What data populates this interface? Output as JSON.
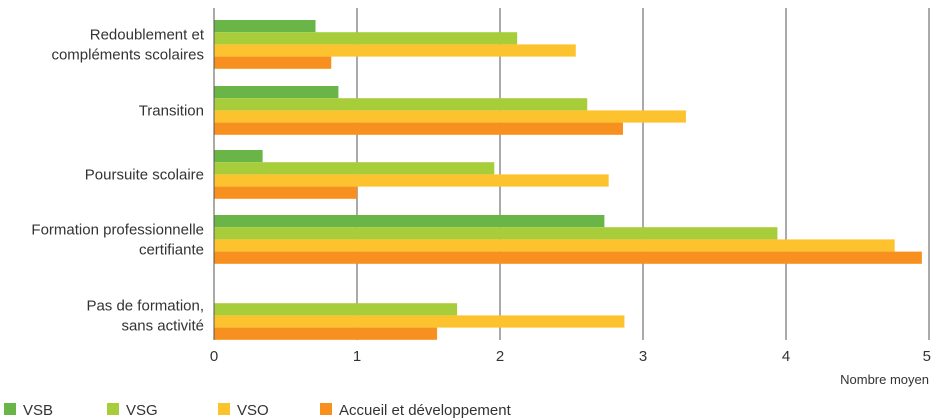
{
  "chart_data": {
    "type": "bar",
    "orientation": "horizontal",
    "categories": [
      [
        "Redoublement et",
        "compléments scolaires"
      ],
      [
        "Transition"
      ],
      [
        "Poursuite scolaire"
      ],
      [
        "Formation professionnelle",
        "certifiante"
      ],
      [
        "Pas de formation,",
        "sans activité"
      ]
    ],
    "series": [
      {
        "name": "VSB",
        "color": "#6ab547",
        "values": [
          0.71,
          0.87,
          0.34,
          2.73,
          0
        ]
      },
      {
        "name": "VSG",
        "color": "#a8cd3a",
        "values": [
          2.12,
          2.61,
          1.96,
          3.94,
          1.7
        ]
      },
      {
        "name": "VSO",
        "color": "#fcc32e",
        "values": [
          2.53,
          3.3,
          2.76,
          4.76,
          2.87
        ]
      },
      {
        "name": "Accueil et développement",
        "color": "#f7901e",
        "values": [
          0.82,
          2.86,
          1.0,
          4.95,
          1.56
        ]
      }
    ],
    "xlabel": "Nombre moyen",
    "xlim": [
      0,
      5
    ],
    "xticks": [
      0,
      1,
      2,
      3,
      4,
      5
    ],
    "grid": "vertical",
    "legend": "bottom-left"
  }
}
